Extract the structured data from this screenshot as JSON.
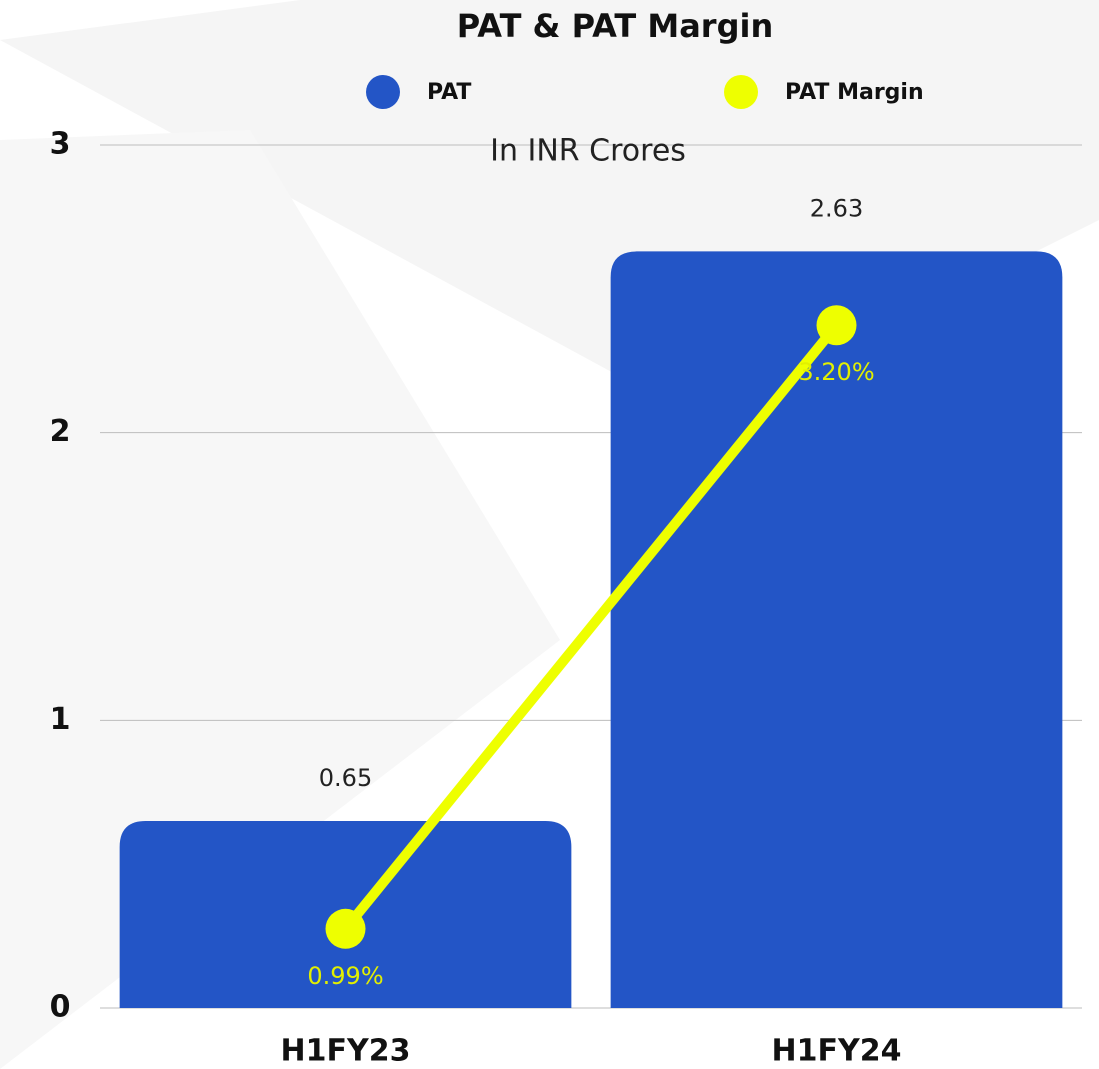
{
  "chart_data": {
    "type": "bar",
    "title": "PAT & PAT Margin",
    "subtitle": "In INR Crores",
    "categories": [
      "H1FY23",
      "H1FY24"
    ],
    "series": [
      {
        "name": "PAT",
        "type": "bar",
        "color": "#2355c6",
        "values": [
          0.65,
          2.63
        ]
      },
      {
        "name": "PAT  Margin",
        "type": "line",
        "axis": "y2",
        "color": "#eeff00",
        "label_color": "#e2ef00",
        "values": [
          0.99,
          3.2
        ],
        "value_labels": [
          "0.99%",
          "3.20%"
        ]
      }
    ],
    "ylim": [
      0,
      3
    ],
    "yticks": [
      0,
      1,
      2,
      3
    ],
    "y2lim": [
      0.7,
      3.86
    ],
    "grid": true,
    "legend": "top"
  }
}
